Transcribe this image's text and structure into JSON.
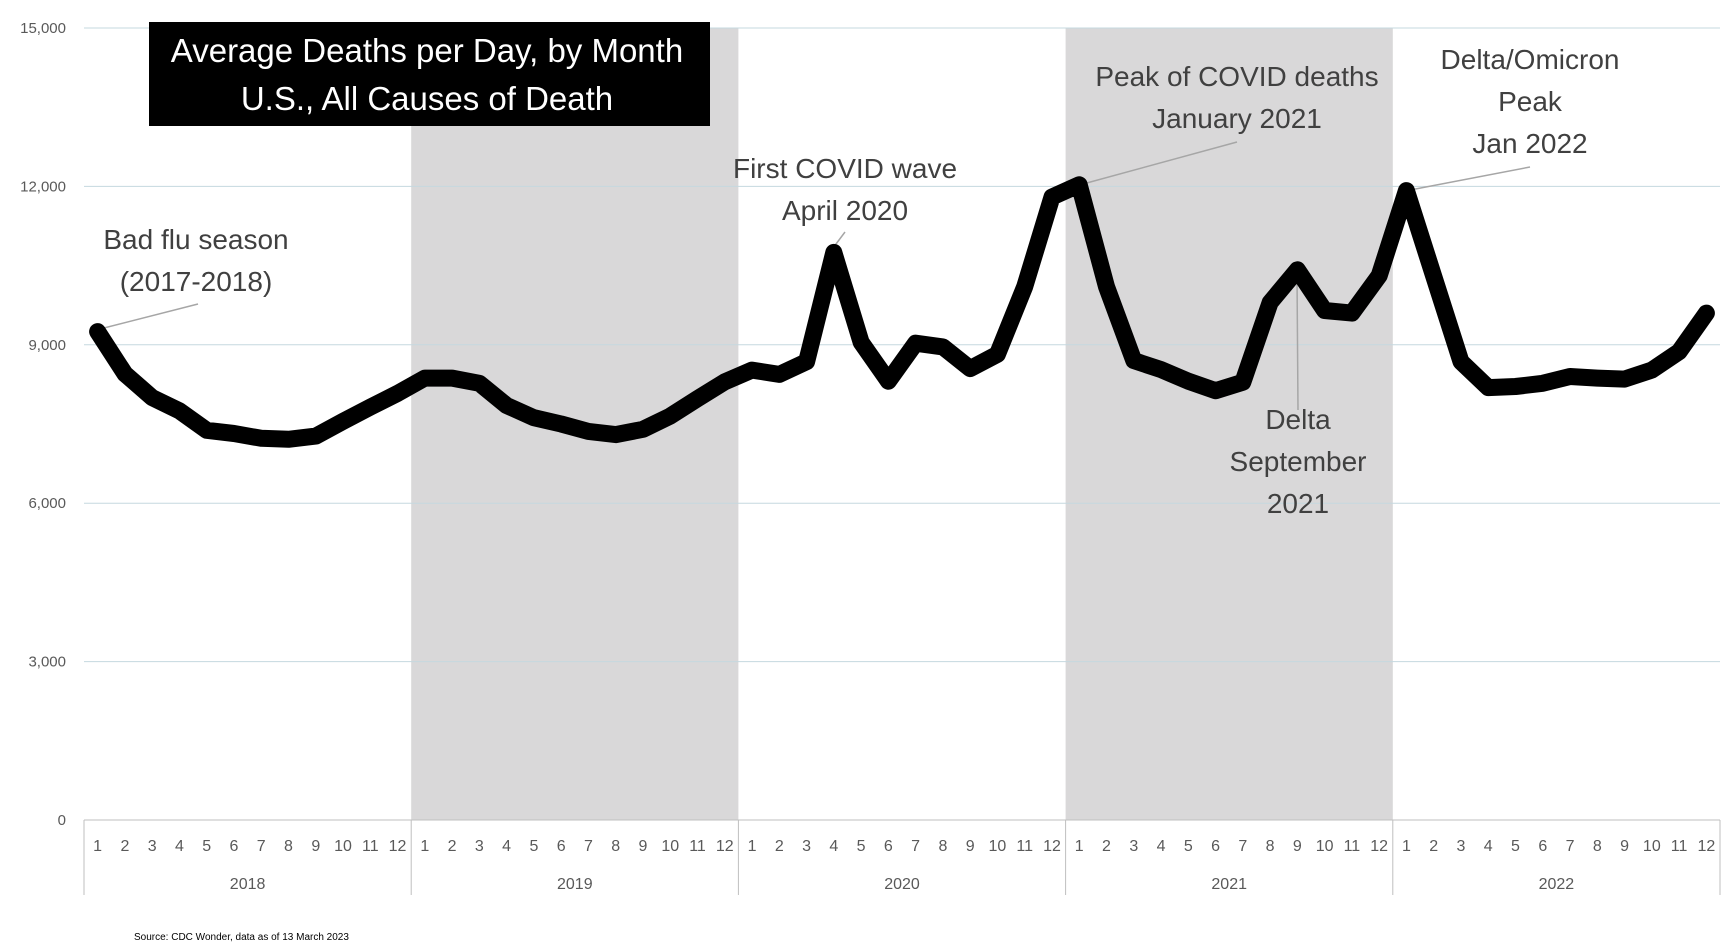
{
  "chart_data": {
    "type": "line",
    "title": [
      "Average Deaths per Day, by Month",
      "U.S., All Causes of Death"
    ],
    "source": "Source: CDC Wonder, data as of 13 March 2023",
    "ylim": [
      0,
      15000
    ],
    "yticks": [
      "0",
      "3,000",
      "6,000",
      "9,000",
      "12,000",
      "15,000"
    ],
    "ytick_values": [
      0,
      3000,
      6000,
      9000,
      12000,
      15000
    ],
    "grid": true,
    "shaded_years": [
      "2019",
      "2021"
    ],
    "years": [
      "2018",
      "2019",
      "2020",
      "2021",
      "2022"
    ],
    "months": [
      "1",
      "2",
      "3",
      "4",
      "5",
      "6",
      "7",
      "8",
      "9",
      "10",
      "11",
      "12"
    ],
    "series": [
      {
        "values": [
          9250,
          8450,
          8000,
          7750,
          7380,
          7320,
          7230,
          7210,
          7270,
          7550,
          7820,
          8080,
          8370,
          8370,
          8270,
          7850,
          7620,
          7500,
          7360,
          7300,
          7400,
          7650,
          7980,
          8300,
          8520,
          8440,
          8680,
          10750,
          9050,
          8310,
          9030,
          8960,
          8550,
          8820,
          10100,
          11800,
          12030,
          10100,
          8700,
          8530,
          8310,
          8130,
          8290,
          9800,
          10420,
          9650,
          9600,
          10310,
          11920,
          10300,
          8680,
          8190,
          8210,
          8270,
          8400,
          8370,
          8350,
          8520,
          8870,
          9600
        ]
      }
    ],
    "annotations": [
      {
        "lines": [
          "Bad flu season",
          "(2017-2018)"
        ],
        "index": 0
      },
      {
        "lines": [
          "First COVID wave",
          "April 2020"
        ],
        "index": 27
      },
      {
        "lines": [
          "Peak of COVID deaths",
          "January 2021"
        ],
        "index": 36
      },
      {
        "lines": [
          "Delta",
          "September",
          "2021"
        ],
        "index": 44
      },
      {
        "lines": [
          "Delta/Omicron",
          "Peak",
          "Jan 2022"
        ],
        "index": 48
      }
    ],
    "colors": {
      "line": "#000000",
      "shade": "#d9d8d9",
      "grid": "#c5d8df",
      "axis": "#bfbfbf",
      "title_bg": "#000000"
    }
  }
}
